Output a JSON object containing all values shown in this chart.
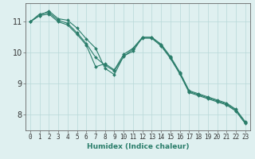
{
  "xlabel": "Humidex (Indice chaleur)",
  "x": [
    0,
    1,
    2,
    3,
    4,
    5,
    6,
    7,
    8,
    9,
    10,
    11,
    12,
    13,
    14,
    15,
    16,
    17,
    18,
    19,
    20,
    21,
    22,
    23
  ],
  "line1": [
    11.0,
    11.2,
    11.35,
    11.1,
    11.05,
    10.8,
    10.45,
    10.15,
    9.5,
    9.3,
    9.9,
    10.05,
    10.5,
    10.5,
    10.25,
    9.85,
    9.35,
    8.75,
    8.65,
    8.55,
    8.45,
    8.35,
    8.15,
    7.75
  ],
  "line2": [
    11.0,
    11.25,
    11.3,
    11.05,
    10.95,
    10.65,
    10.3,
    9.85,
    9.6,
    9.42,
    9.88,
    10.12,
    10.47,
    10.47,
    10.22,
    9.82,
    9.32,
    8.72,
    8.62,
    8.52,
    8.42,
    8.32,
    8.12,
    7.72
  ],
  "line3": [
    11.0,
    11.2,
    11.25,
    11.0,
    10.9,
    10.6,
    10.25,
    9.55,
    9.65,
    9.45,
    9.95,
    10.15,
    10.5,
    10.5,
    10.28,
    9.88,
    9.38,
    8.78,
    8.68,
    8.58,
    8.48,
    8.38,
    8.18,
    7.78
  ],
  "line_color": "#2a7d6a",
  "bg_color": "#dff0f0",
  "grid_color": "#b8d8d8",
  "axis_color": "#666666",
  "ylim": [
    7.5,
    11.6
  ],
  "yticks": [
    8,
    9,
    10,
    11
  ],
  "xticks": [
    0,
    1,
    2,
    3,
    4,
    5,
    6,
    7,
    8,
    9,
    10,
    11,
    12,
    13,
    14,
    15,
    16,
    17,
    18,
    19,
    20,
    21,
    22,
    23
  ],
  "tick_fontsize": 5.5,
  "xlabel_fontsize": 6.5
}
